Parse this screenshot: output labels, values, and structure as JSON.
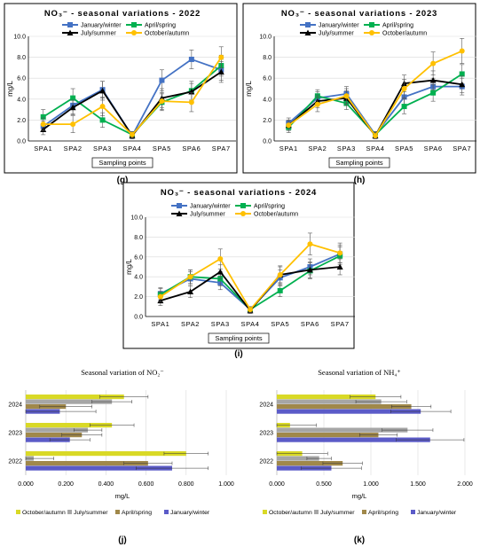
{
  "panel_labels": [
    "(g)",
    "(h)",
    "(i)",
    "(j)",
    "(k)"
  ],
  "colors": {
    "January/winter": "#4472C4",
    "April/spring": "#00B050",
    "July/summer": "#000000",
    "October/autumn": "#FFC000",
    "bar_oct": "#D9D926",
    "bar_jul": "#A6A6A6",
    "bar_apr": "#A0884A",
    "bar_jan": "#5B5BC8"
  },
  "chart_data": [
    {
      "type": "line",
      "title": "NO₃⁻ - seasonal variations - 2022",
      "xlabel": "Sampling points",
      "ylabel": "mg/L",
      "ylim": [
        0,
        10
      ],
      "yticks": [
        "0.0",
        "2.0",
        "4.0",
        "6.0",
        "8.0",
        "10.0"
      ],
      "categories": [
        "SPA1",
        "SPA2",
        "SPA3",
        "SPA4",
        "SPA5",
        "SPA6",
        "SPA7"
      ],
      "legend": "top",
      "series": [
        {
          "name": "January/winter",
          "values": [
            1.4,
            3.4,
            4.9,
            0.5,
            5.8,
            7.8,
            6.8
          ],
          "err": [
            0.5,
            0.8,
            0.8,
            0.3,
            1.0,
            0.9,
            1.0
          ]
        },
        {
          "name": "April/spring",
          "values": [
            2.3,
            4.1,
            2.0,
            0.6,
            3.7,
            4.8,
            7.2
          ],
          "err": [
            0.7,
            0.9,
            0.7,
            0.3,
            0.8,
            0.9,
            1.0
          ]
        },
        {
          "name": "July/summer",
          "values": [
            1.1,
            3.2,
            4.8,
            0.5,
            4.1,
            4.7,
            6.6
          ],
          "err": [
            0.5,
            0.7,
            0.9,
            0.3,
            0.9,
            0.8,
            1.0
          ]
        },
        {
          "name": "October/autumn",
          "values": [
            1.6,
            1.6,
            3.3,
            0.6,
            3.8,
            3.7,
            8.0
          ],
          "err": [
            0.6,
            0.8,
            0.9,
            0.3,
            0.8,
            0.9,
            1.0
          ]
        }
      ]
    },
    {
      "type": "line",
      "title": "NO₃⁻ - seasonal variations - 2023",
      "xlabel": "Sampling points",
      "ylabel": "mg/L",
      "ylim": [
        0,
        10
      ],
      "yticks": [
        "0.0",
        "2.0",
        "4.0",
        "6.0",
        "8.0",
        "10.0"
      ],
      "categories": [
        "SPA1",
        "SPA2",
        "SPA3",
        "SPA4",
        "SPA5",
        "SPA6",
        "SPA7"
      ],
      "legend": "top",
      "series": [
        {
          "name": "January/winter",
          "values": [
            1.7,
            4.1,
            4.5,
            0.6,
            4.2,
            5.2,
            5.2
          ],
          "err": [
            0.5,
            0.6,
            0.7,
            0.3,
            0.8,
            0.8,
            0.8
          ]
        },
        {
          "name": "April/spring",
          "values": [
            1.3,
            4.3,
            3.6,
            0.6,
            3.3,
            4.6,
            6.4
          ],
          "err": [
            0.5,
            0.6,
            0.6,
            0.3,
            0.7,
            0.8,
            0.9
          ]
        },
        {
          "name": "July/summer",
          "values": [
            1.5,
            3.8,
            4.1,
            0.5,
            5.5,
            5.8,
            5.4
          ],
          "err": [
            0.5,
            0.6,
            0.7,
            0.3,
            0.8,
            0.9,
            0.8
          ]
        },
        {
          "name": "October/autumn",
          "values": [
            1.5,
            3.5,
            4.3,
            0.5,
            5.0,
            7.4,
            8.6
          ],
          "err": [
            0.5,
            0.7,
            0.7,
            0.3,
            0.9,
            1.1,
            1.2
          ]
        }
      ]
    },
    {
      "type": "line",
      "title": "NO₃⁻ - seasonal variations - 2024",
      "xlabel": "Sampling points",
      "ylabel": "mg/L",
      "ylim": [
        0,
        10
      ],
      "yticks": [
        "0.0",
        "2.0",
        "4.0",
        "6.0",
        "8.0",
        "10.0"
      ],
      "categories": [
        "SPA1",
        "SPA2",
        "SPA3",
        "SPA4",
        "SPA5",
        "SPA6",
        "SPA7"
      ],
      "legend": "top",
      "series": [
        {
          "name": "January/winter",
          "values": [
            2.3,
            3.8,
            3.4,
            0.7,
            3.9,
            5.0,
            6.3
          ],
          "err": [
            0.6,
            0.7,
            0.7,
            0.3,
            0.8,
            0.8,
            0.9
          ]
        },
        {
          "name": "April/spring",
          "values": [
            2.2,
            4.0,
            3.8,
            0.7,
            2.6,
            4.6,
            6.1
          ],
          "err": [
            0.6,
            0.7,
            0.7,
            0.3,
            0.6,
            0.8,
            0.9
          ]
        },
        {
          "name": "July/summer",
          "values": [
            1.6,
            2.5,
            4.5,
            0.6,
            4.2,
            4.7,
            5.0
          ],
          "err": [
            0.5,
            0.6,
            0.7,
            0.3,
            0.8,
            0.8,
            0.8
          ]
        },
        {
          "name": "October/autumn",
          "values": [
            2.0,
            4.0,
            5.8,
            0.7,
            4.2,
            7.3,
            6.4
          ],
          "err": [
            0.5,
            0.7,
            1.0,
            0.3,
            0.9,
            1.1,
            1.0
          ]
        }
      ]
    },
    {
      "type": "bar",
      "orientation": "horizontal",
      "title": "Seasonal variation of NO₂⁻",
      "xlabel": "mg/L",
      "ylabel": "",
      "xlim": [
        0,
        1.0
      ],
      "xticks": [
        "0.000",
        "0.200",
        "0.400",
        "0.600",
        "0.800",
        "1.000"
      ],
      "categories": [
        "2024",
        "2023",
        "2022"
      ],
      "legend": "bottom",
      "series": [
        {
          "name": "October/autumn",
          "values": [
            0.49,
            0.43,
            0.8
          ],
          "err": [
            0.12,
            0.11,
            0.11
          ]
        },
        {
          "name": "July/summer",
          "values": [
            0.43,
            0.31,
            0.04
          ],
          "err": [
            0.1,
            0.07,
            0.1
          ]
        },
        {
          "name": "April/spring",
          "values": [
            0.2,
            0.28,
            0.61
          ],
          "err": [
            0.13,
            0.1,
            0.12
          ]
        },
        {
          "name": "January/winter",
          "values": [
            0.17,
            0.22,
            0.73
          ],
          "err": [
            0.18,
            0.1,
            0.18
          ]
        }
      ]
    },
    {
      "type": "bar",
      "orientation": "horizontal",
      "title": "Seasonal variation of NH₄⁺",
      "xlabel": "mg/L",
      "ylabel": "",
      "xlim": [
        0,
        2.0
      ],
      "xticks": [
        "0.000",
        "0.500",
        "1.000",
        "1.500",
        "2.000"
      ],
      "categories": [
        "2024",
        "2023",
        "2022"
      ],
      "legend": "bottom",
      "series": [
        {
          "name": "October/autumn",
          "values": [
            1.05,
            0.14,
            0.27
          ],
          "err": [
            0.27,
            0.28,
            0.27
          ]
        },
        {
          "name": "July/summer",
          "values": [
            1.11,
            1.39,
            0.45
          ],
          "err": [
            0.27,
            0.27,
            0.13
          ]
        },
        {
          "name": "April/spring",
          "values": [
            1.43,
            1.08,
            0.7
          ],
          "err": [
            0.21,
            0.2,
            0.21
          ]
        },
        {
          "name": "January/winter",
          "values": [
            1.53,
            1.63,
            0.58
          ],
          "err": [
            0.32,
            0.36,
            0.32
          ]
        }
      ]
    }
  ]
}
